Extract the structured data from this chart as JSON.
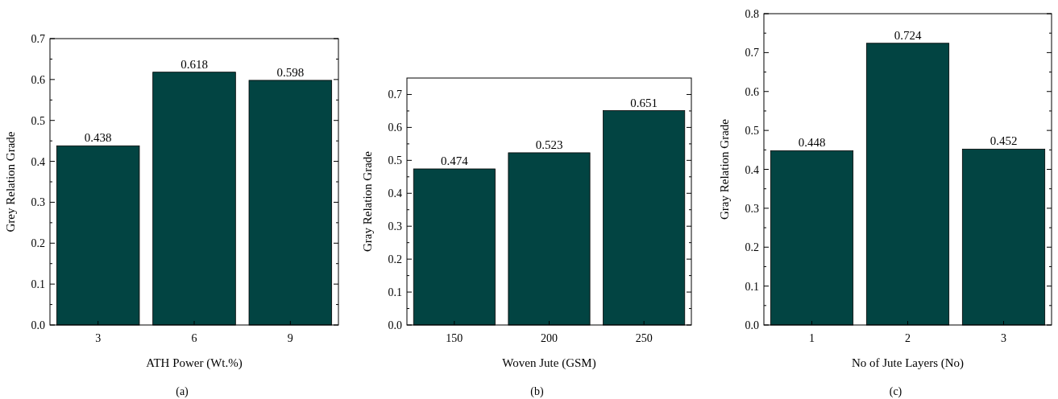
{
  "chart_data": [
    {
      "type": "bar",
      "categories": [
        "3",
        "6",
        "9"
      ],
      "values": [
        0.438,
        0.618,
        0.598
      ],
      "color": "#024442",
      "data_labels": true,
      "xlabel": "ATH Power (Wt.%)",
      "ylabel": "Grey Relation Grade",
      "ylim": [
        0,
        0.7
      ],
      "yticks": [
        {
          "value": 0,
          "label": "0.0"
        },
        {
          "value": 0.05,
          "label": null
        },
        0.1,
        {
          "value": 0.15,
          "label": null
        },
        0.2,
        {
          "value": 0.25,
          "label": null
        },
        0.3,
        {
          "value": 0.35,
          "label": null
        },
        0.4,
        {
          "value": 0.45,
          "label": null
        },
        0.5,
        {
          "value": 0.55,
          "label": null
        },
        0.6,
        {
          "value": 0.65,
          "label": null
        },
        0.7
      ],
      "annotations": [
        "(a)"
      ]
    },
    {
      "type": "bar",
      "categories": [
        "150",
        "200",
        "250"
      ],
      "values": [
        0.474,
        0.523,
        0.651
      ],
      "color": "#024442",
      "data_labels": true,
      "xlabel": "Woven Jute (GSM)",
      "ylabel": "Gray Relation Grade",
      "ylim": [
        0,
        0.75
      ],
      "yticks": [
        {
          "value": 0,
          "label": "0.0"
        },
        {
          "value": 0.05,
          "label": null
        },
        0.1,
        {
          "value": 0.15,
          "label": null
        },
        0.2,
        {
          "value": 0.25,
          "label": null
        },
        0.3,
        {
          "value": 0.35,
          "label": null
        },
        0.4,
        {
          "value": 0.45,
          "label": null
        },
        0.5,
        {
          "value": 0.55,
          "label": null
        },
        0.6,
        {
          "value": 0.65,
          "label": null
        },
        0.7
      ],
      "annotations": [
        "(b)"
      ]
    },
    {
      "type": "bar",
      "categories": [
        "1",
        "2",
        "3"
      ],
      "values": [
        0.448,
        0.724,
        0.452
      ],
      "color": "#024442",
      "data_labels": true,
      "xlabel": "No of Jute Layers (No)",
      "ylabel": "Gray Relation Grade",
      "ylim": [
        0,
        0.8
      ],
      "yticks": [
        {
          "value": 0,
          "label": "0.0"
        },
        {
          "value": 0.05,
          "label": null
        },
        0.1,
        {
          "value": 0.15,
          "label": null
        },
        0.2,
        {
          "value": 0.25,
          "label": null
        },
        0.3,
        {
          "value": 0.35,
          "label": null
        },
        0.4,
        {
          "value": 0.45,
          "label": null
        },
        0.5,
        {
          "value": 0.55,
          "label": null
        },
        0.6,
        {
          "value": 0.65,
          "label": null
        },
        0.7,
        {
          "value": 0.75,
          "label": null
        },
        0.8
      ],
      "annotations": [
        "(c)"
      ]
    }
  ]
}
